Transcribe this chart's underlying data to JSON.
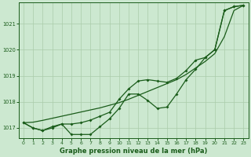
{
  "title": "Graphe pression niveau de la mer (hPa)",
  "background_color": "#cce8d0",
  "grid_color": "#aaccaa",
  "line_color": "#1a5c1a",
  "xlim": [
    -0.5,
    23.5
  ],
  "ylim": [
    1016.6,
    1021.8
  ],
  "yticks": [
    1017,
    1018,
    1019,
    1020,
    1021
  ],
  "xticks": [
    0,
    1,
    2,
    3,
    4,
    5,
    6,
    7,
    8,
    9,
    10,
    11,
    12,
    13,
    14,
    15,
    16,
    17,
    18,
    19,
    20,
    21,
    22,
    23
  ],
  "series_wavy": [
    1017.2,
    1017.0,
    1016.9,
    1017.0,
    1017.15,
    1016.75,
    1016.75,
    1016.75,
    1017.05,
    1017.35,
    1017.75,
    1018.3,
    1018.3,
    1018.05,
    1017.75,
    1017.8,
    1018.3,
    1018.85,
    1019.25,
    1019.7,
    1020.0,
    1021.5,
    1021.65,
    1021.7
  ],
  "series_mid": [
    1017.2,
    1017.0,
    1016.9,
    1017.05,
    1017.15,
    1017.15,
    1017.2,
    1017.3,
    1017.45,
    1017.6,
    1018.1,
    1018.5,
    1018.8,
    1018.85,
    1018.8,
    1018.75,
    1018.9,
    1019.2,
    1019.6,
    1019.7,
    1020.0,
    1021.5,
    1021.65,
    1021.7
  ],
  "series_straight": [
    1017.2,
    1017.22,
    1017.29,
    1017.37,
    1017.45,
    1017.53,
    1017.61,
    1017.69,
    1017.77,
    1017.87,
    1017.97,
    1018.1,
    1018.25,
    1018.4,
    1018.55,
    1018.7,
    1018.85,
    1019.05,
    1019.3,
    1019.55,
    1019.85,
    1020.5,
    1021.5,
    1021.7
  ]
}
